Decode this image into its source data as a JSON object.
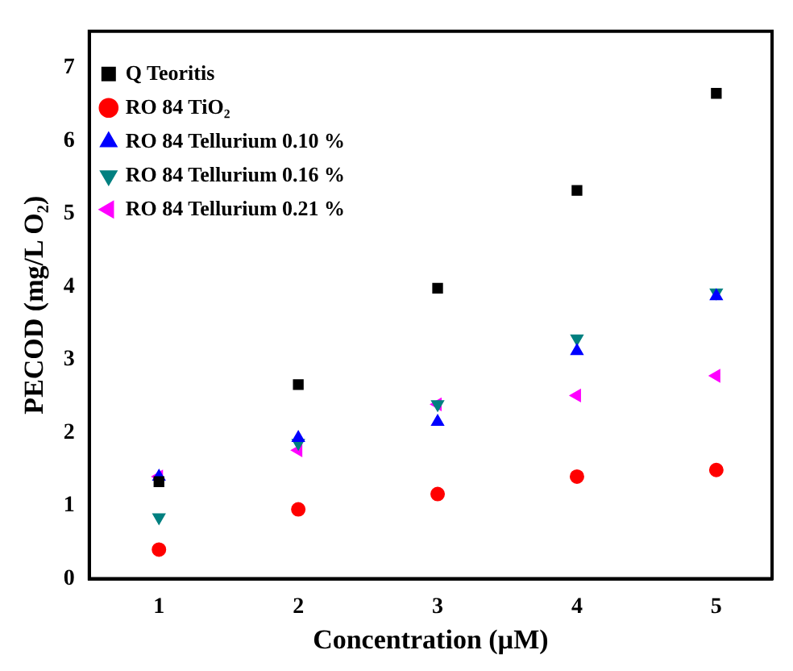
{
  "chart_data": {
    "type": "scatter",
    "xlabel": "Concentration (µM)",
    "ylabel": "PECOD (mg/L O₂)",
    "x": [
      1,
      2,
      3,
      4,
      5
    ],
    "series": [
      {
        "name": "Q Teoritis",
        "color": "#000000",
        "marker": "square",
        "values": [
          1.33,
          2.66,
          3.98,
          5.32,
          6.65
        ]
      },
      {
        "name": "RO 84 TiO₂",
        "color": "#ff0000",
        "marker": "circle",
        "values": [
          0.4,
          0.95,
          1.16,
          1.4,
          1.49
        ]
      },
      {
        "name": "RO 84 Tellurium 0.10 %",
        "color": "#0000ff",
        "marker": "triangle",
        "values": [
          1.4,
          1.93,
          2.15,
          3.12,
          3.87
        ]
      },
      {
        "name": "RO 84 Tellurium 0.16 %",
        "color": "#008080",
        "marker": "triangle-down",
        "values": [
          0.84,
          1.86,
          2.39,
          3.29,
          3.92
        ]
      },
      {
        "name": "RO 84 Tellurium 0.21 %",
        "color": "#ff00ff",
        "marker": "triangle-left",
        "values": [
          1.4,
          1.76,
          2.39,
          2.51,
          2.78
        ]
      }
    ],
    "xlim": [
      0.5,
      5.4
    ],
    "xticks": [
      1,
      2,
      3,
      4,
      5
    ],
    "ylim": [
      0,
      7.5
    ],
    "yticks": [
      0,
      1,
      2,
      3,
      4,
      5,
      6,
      7
    ],
    "grid": false,
    "legend": "top left"
  }
}
